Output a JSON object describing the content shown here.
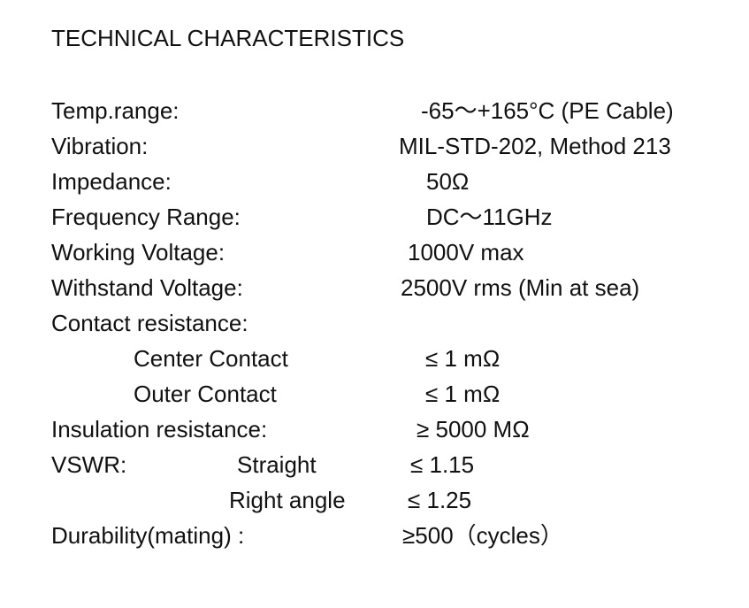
{
  "title": "TECHNICAL CHARACTERISTICS",
  "rows": [
    {
      "label": "Temp.range:",
      "value": "-65～+165°C (PE Cable)"
    },
    {
      "label": "Vibration:",
      "value": "MIL-STD-202, Method 213"
    },
    {
      "label": "Impedance:",
      "value": "50Ω"
    },
    {
      "label": "Frequency Range:",
      "value": "DC～11GHz"
    },
    {
      "label": "Working Voltage:",
      "value": "1000V max"
    },
    {
      "label": "Withstand Voltage:",
      "value": "2500V rms (Min at sea)"
    },
    {
      "label": "Contact resistance:",
      "value": ""
    },
    {
      "label": "Center Contact",
      "value": "≤ 1 mΩ"
    },
    {
      "label": "Outer Contact",
      "value": "≤ 1 mΩ"
    },
    {
      "label": "Insulation resistance:",
      "value": "≥ 5000 MΩ"
    },
    {
      "label": "VSWR:",
      "sublabel": "Straight",
      "value": "≤ 1.15"
    },
    {
      "label": "",
      "sublabel": "Right angle",
      "value": "≤ 1.25"
    },
    {
      "label": "Durability(mating) :",
      "value": "≥500（cycles）"
    }
  ]
}
